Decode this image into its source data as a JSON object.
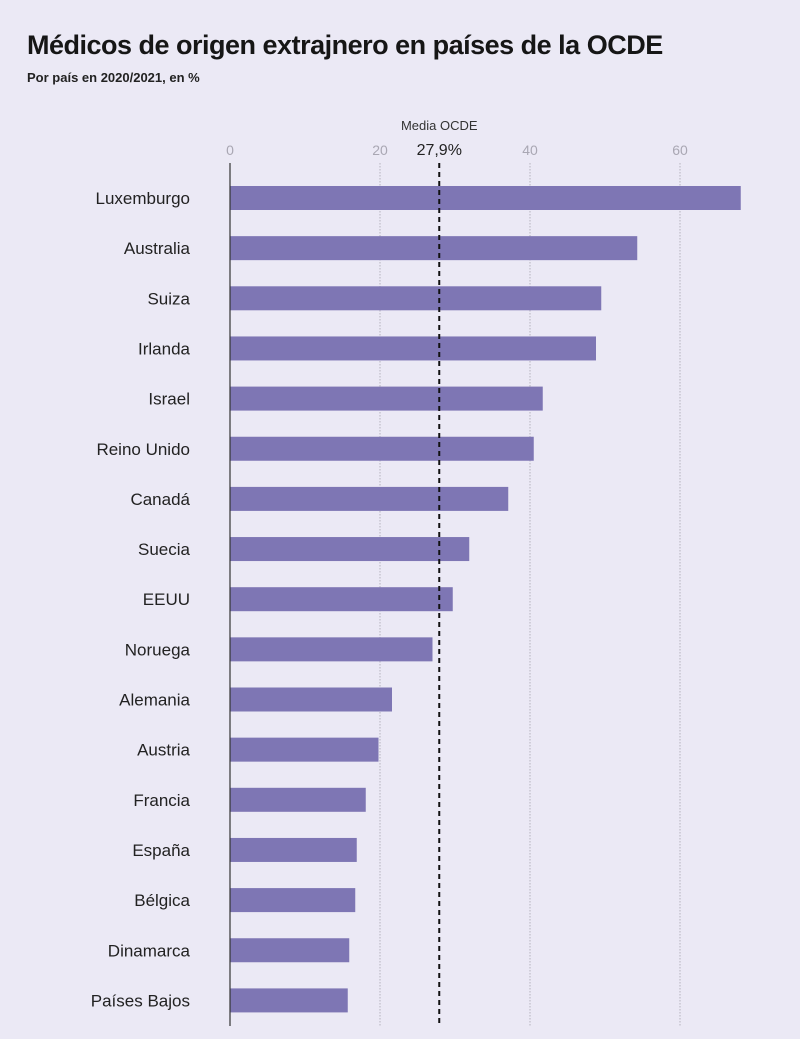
{
  "title": "Médicos de origen extrajnero en países de la OCDE",
  "subtitle": "Por país en 2020/2021, en %",
  "chart_data": {
    "type": "bar",
    "orientation": "horizontal",
    "title": "Médicos de origen extrajnero en países de la OCDE",
    "subtitle": "Por país en 2020/2021, en %",
    "xlim": [
      0,
      68
    ],
    "xticks": [
      0,
      20,
      40,
      60
    ],
    "grid": true,
    "bar_color": "#7e76b4",
    "categories": [
      "Luxemburgo",
      "Australia",
      "Suiza",
      "Irlanda",
      "Israel",
      "Reino Unido",
      "Canadá",
      "Suecia",
      "EEUU",
      "Noruega",
      "Alemania",
      "Austria",
      "Francia",
      "España",
      "Bélgica",
      "Dinamarca",
      "Países Bajos"
    ],
    "values": [
      68.1,
      54.3,
      49.5,
      48.8,
      41.7,
      40.5,
      37.1,
      31.9,
      29.7,
      27.0,
      21.6,
      19.8,
      18.1,
      16.9,
      16.7,
      15.9,
      15.7
    ],
    "reference_line": {
      "label": "Media OCDE",
      "value": 27.9,
      "value_label": "27,9%"
    }
  }
}
